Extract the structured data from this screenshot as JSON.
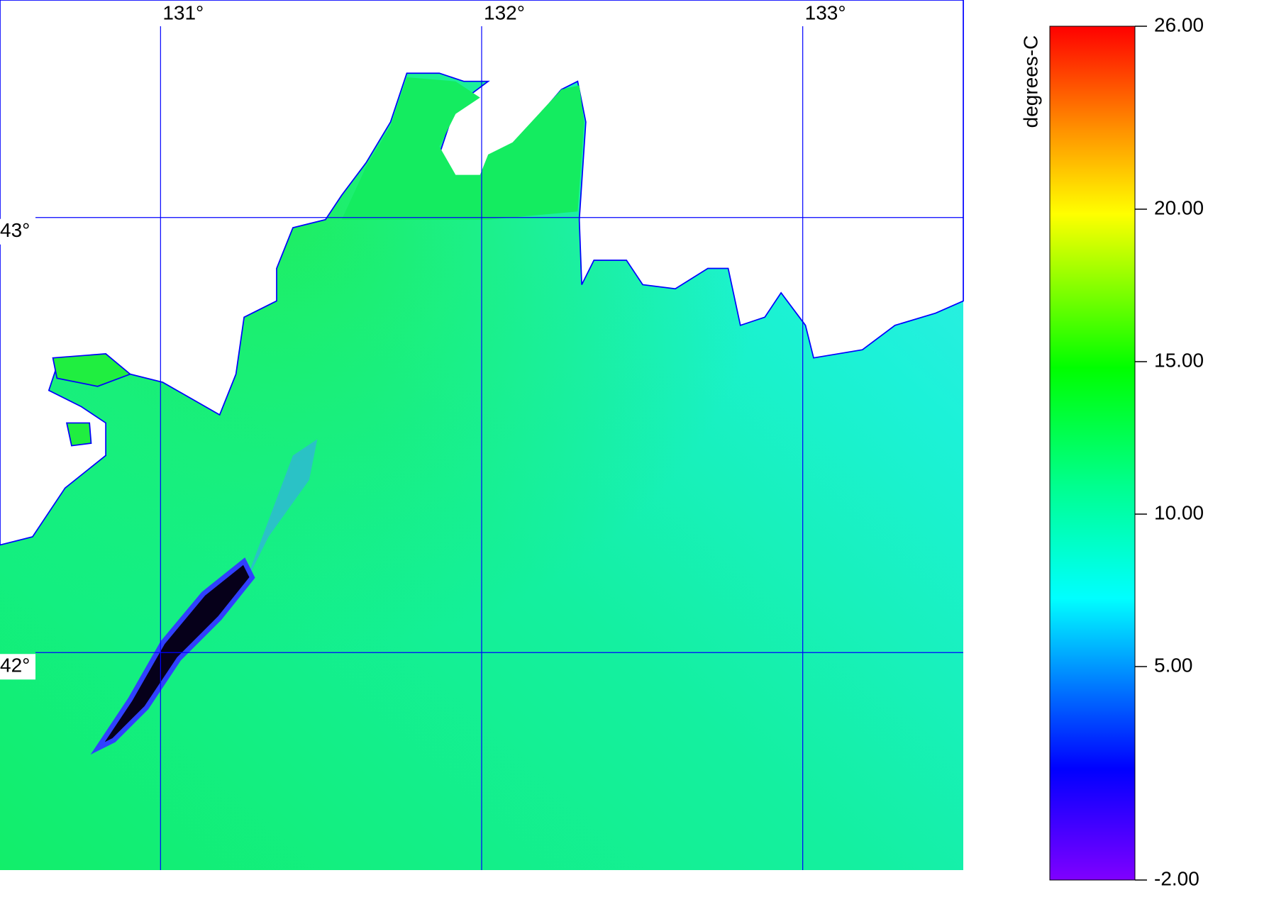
{
  "chart_data": {
    "type": "map",
    "xlim": [
      130.5,
      133.5
    ],
    "ylim": [
      41.5,
      43.5
    ],
    "xticks": [
      {
        "value": 131,
        "label": "131°"
      },
      {
        "value": 132,
        "label": "132°"
      },
      {
        "value": 133,
        "label": "133°"
      }
    ],
    "yticks": [
      {
        "value": 42,
        "label": "42°"
      },
      {
        "value": 43,
        "label": "43°"
      }
    ],
    "grid": true,
    "grid_color": "#0000ff"
  },
  "colorbar": {
    "label": "degrees-C",
    "lim": [
      -2,
      26
    ],
    "ticks": [
      {
        "value": -2,
        "label": "-2.00"
      },
      {
        "value": 5,
        "label": "5.00"
      },
      {
        "value": 10,
        "label": "10.00"
      },
      {
        "value": 15,
        "label": "15.00"
      },
      {
        "value": 20,
        "label": "20.00"
      },
      {
        "value": 26,
        "label": "26.00"
      }
    ]
  }
}
